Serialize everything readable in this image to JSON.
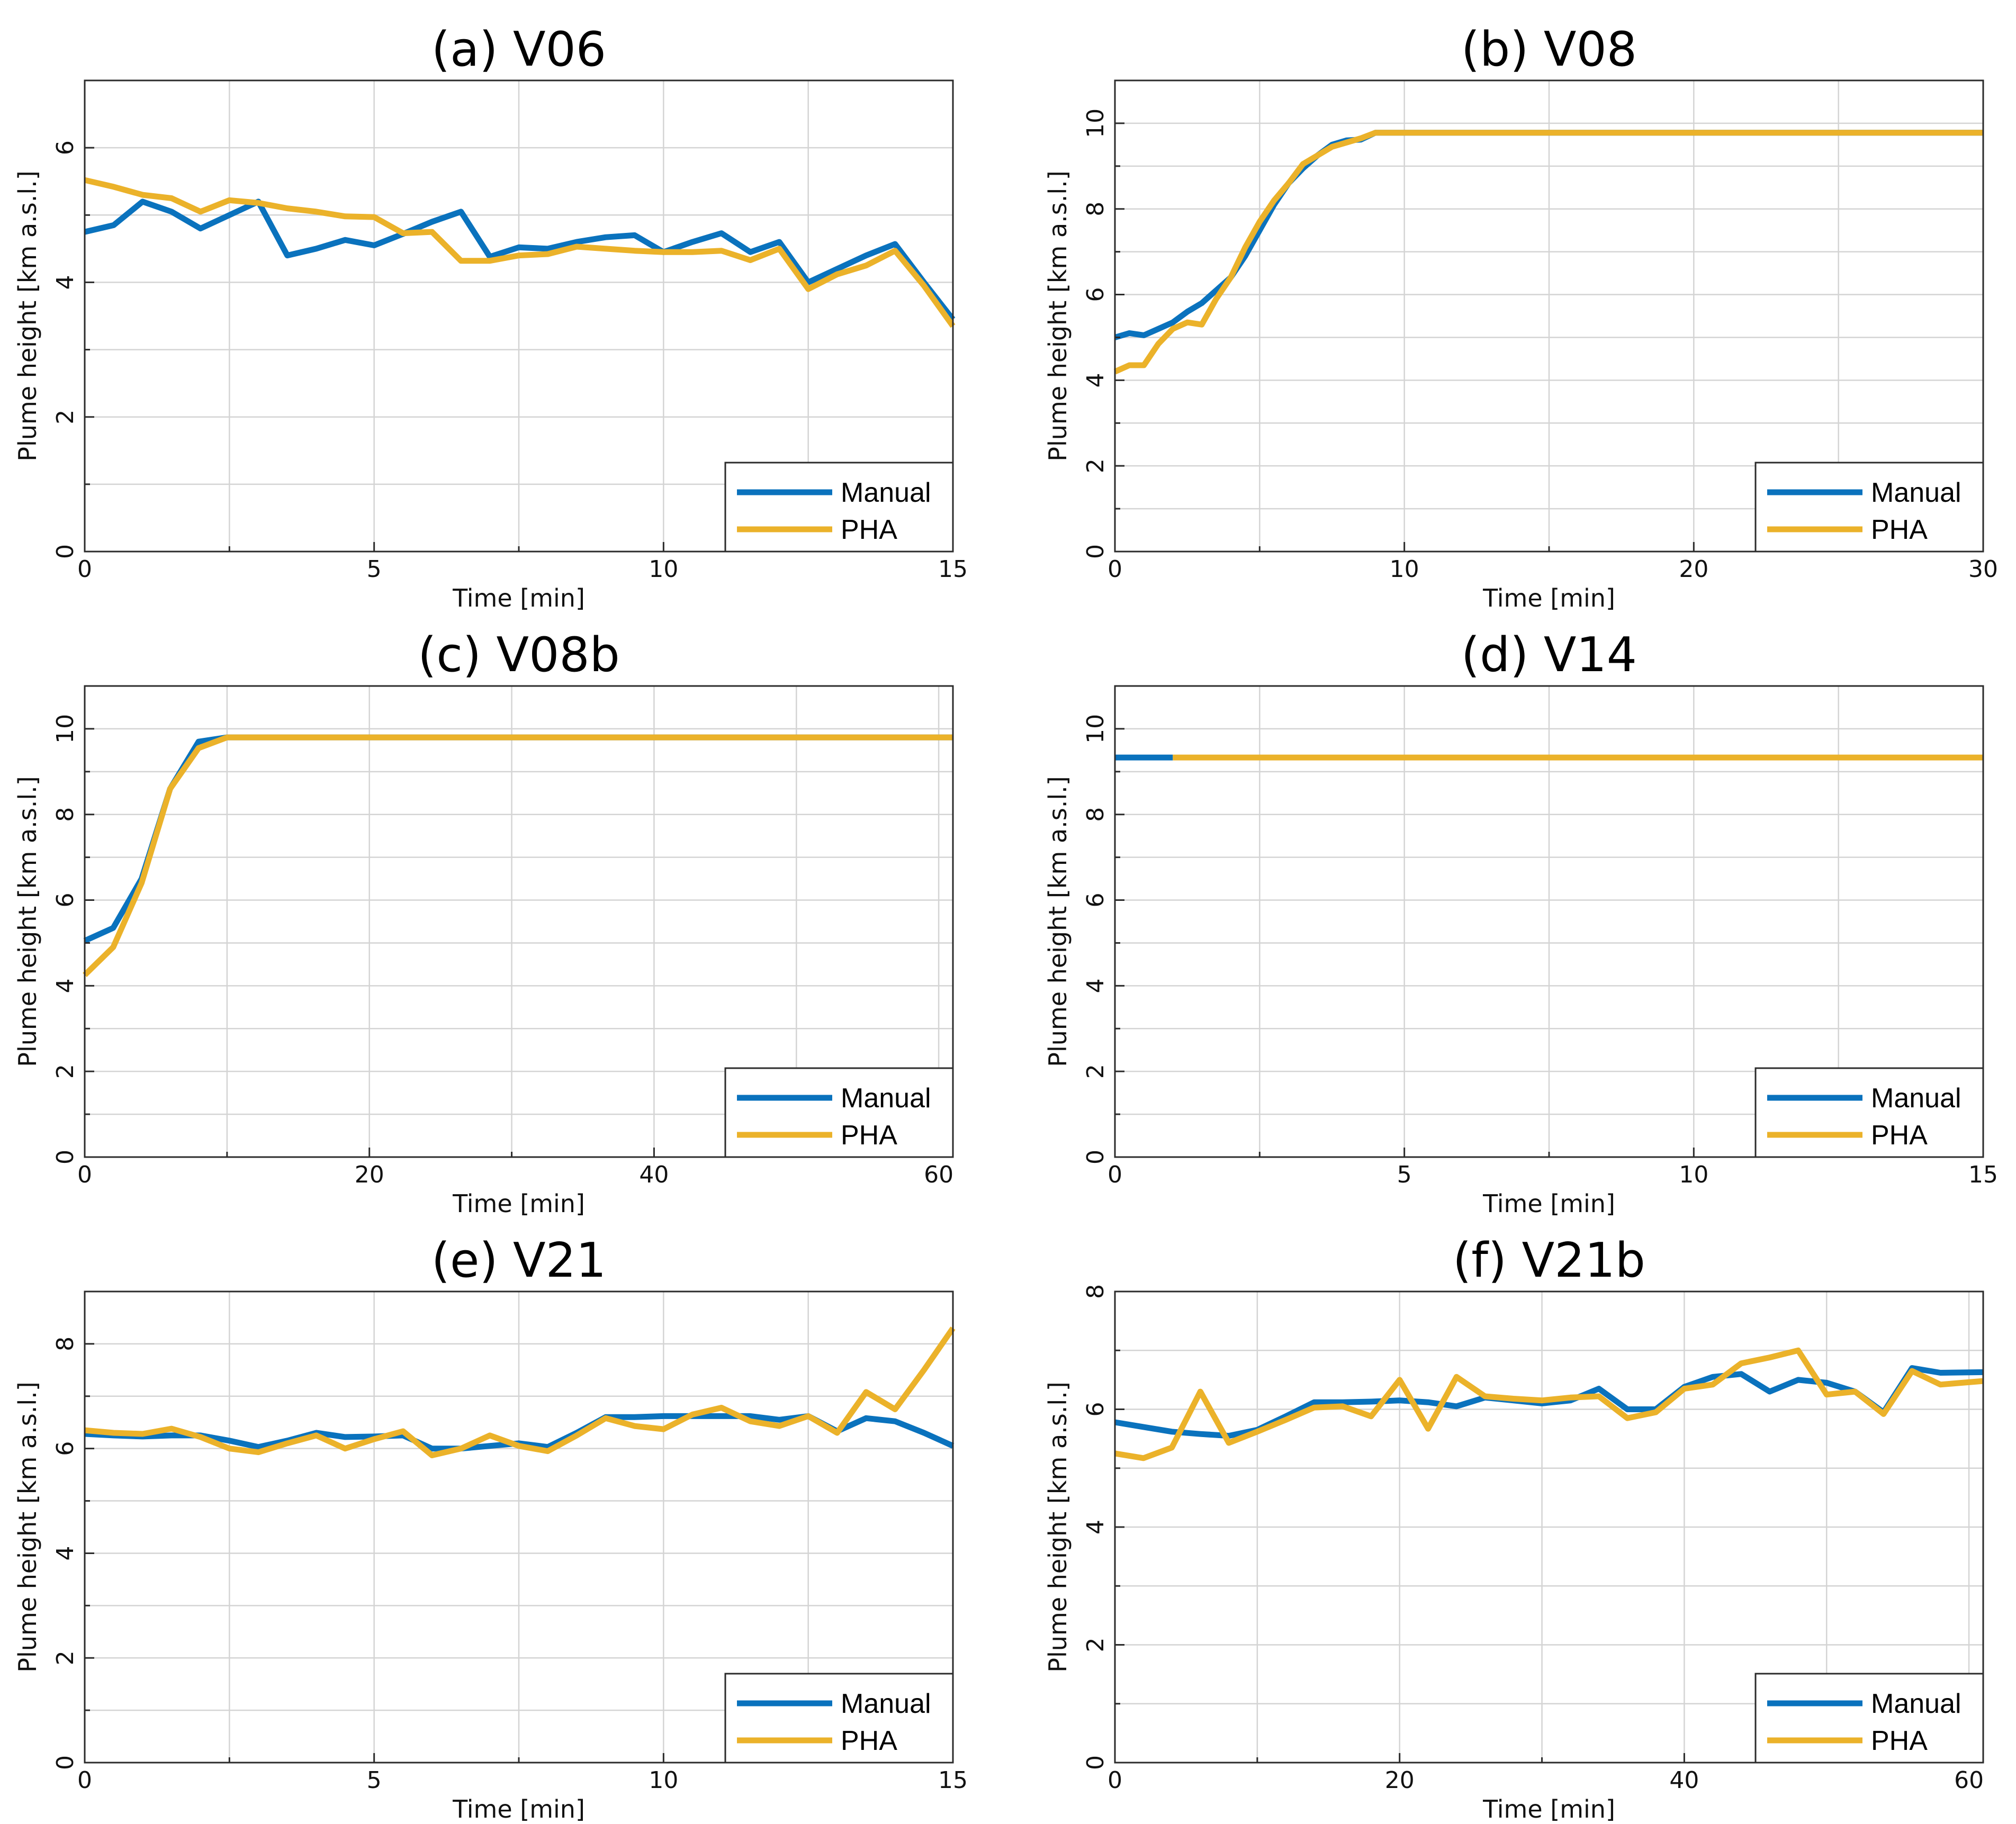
{
  "colors": {
    "manual": "#0a72bd",
    "pha": "#ebb22a"
  },
  "chart_data": [
    {
      "type": "line",
      "title": "(a) V06",
      "xlabel": "Time [min]",
      "ylabel": "Plume height [km a.s.l.]",
      "xlim": [
        0,
        15
      ],
      "ylim": [
        0,
        7
      ],
      "xticks": [
        0,
        5,
        10,
        15
      ],
      "yticks": [
        0,
        2,
        4,
        6
      ],
      "xminor": [
        2.5,
        7.5,
        12.5
      ],
      "yminor": [
        1,
        3,
        5,
        7
      ],
      "legend": {
        "position": "bottom-right",
        "entries": [
          "Manual",
          "PHA"
        ]
      },
      "series": [
        {
          "name": "Manual",
          "x": [
            0,
            0.5,
            1,
            1.5,
            2,
            2.5,
            3,
            3.5,
            4,
            4.5,
            5,
            5.5,
            6,
            6.5,
            7,
            7.5,
            8,
            8.5,
            9,
            9.5,
            10,
            10.5,
            11,
            11.5,
            12,
            12.5,
            13,
            13.5,
            14,
            14.5,
            15
          ],
          "y": [
            4.75,
            4.85,
            5.2,
            5.05,
            4.8,
            5.0,
            5.2,
            4.4,
            4.5,
            4.63,
            4.55,
            4.72,
            4.9,
            5.05,
            4.38,
            4.52,
            4.5,
            4.6,
            4.67,
            4.7,
            4.45,
            4.6,
            4.73,
            4.45,
            4.6,
            4.0,
            4.2,
            4.4,
            4.57,
            4.0,
            3.45
          ]
        },
        {
          "name": "PHA",
          "x": [
            0,
            0.5,
            1,
            1.5,
            2,
            2.5,
            3,
            3.5,
            4,
            4.5,
            5,
            5.5,
            6,
            6.5,
            7,
            7.5,
            8,
            8.5,
            9,
            9.5,
            10,
            10.5,
            11,
            11.5,
            12,
            12.5,
            13,
            13.5,
            14,
            14.5,
            15
          ],
          "y": [
            5.52,
            5.42,
            5.3,
            5.25,
            5.05,
            5.22,
            5.18,
            5.1,
            5.05,
            4.98,
            4.97,
            4.73,
            4.75,
            4.32,
            4.32,
            4.4,
            4.42,
            4.53,
            4.5,
            4.47,
            4.45,
            4.45,
            4.47,
            4.33,
            4.5,
            3.9,
            4.12,
            4.25,
            4.47,
            3.95,
            3.35
          ]
        }
      ]
    },
    {
      "type": "line",
      "title": "(b) V08",
      "xlabel": "Time [min]",
      "ylabel": "Plume height [km a.s.l.]",
      "xlim": [
        0,
        30
      ],
      "ylim": [
        0,
        11
      ],
      "xticks": [
        0,
        10,
        20,
        30
      ],
      "yticks": [
        0,
        2,
        4,
        6,
        8,
        10
      ],
      "xminor": [
        5,
        15,
        25
      ],
      "yminor": [
        1,
        3,
        5,
        7,
        9,
        11
      ],
      "legend": {
        "position": "bottom-right",
        "entries": [
          "Manual",
          "PHA"
        ]
      },
      "series": [
        {
          "name": "Manual",
          "x": [
            0,
            0.5,
            1,
            1.5,
            2,
            2.5,
            3,
            3.5,
            4,
            4.5,
            5,
            5.5,
            6,
            6.5,
            7,
            7.5,
            8,
            8.5,
            9,
            10,
            15,
            20,
            25,
            30
          ],
          "y": [
            5.0,
            5.1,
            5.05,
            5.2,
            5.35,
            5.6,
            5.8,
            6.1,
            6.4,
            6.9,
            7.5,
            8.1,
            8.6,
            8.95,
            9.25,
            9.5,
            9.6,
            9.62,
            9.78,
            9.78,
            9.78,
            9.78,
            9.78,
            9.78
          ]
        },
        {
          "name": "PHA",
          "x": [
            0,
            0.5,
            1,
            1.5,
            2,
            2.5,
            3,
            3.5,
            4,
            4.5,
            5,
            5.5,
            6,
            6.5,
            7,
            7.5,
            8,
            8.5,
            9,
            10,
            15,
            20,
            25,
            30
          ],
          "y": [
            4.2,
            4.35,
            4.35,
            4.85,
            5.2,
            5.35,
            5.3,
            5.9,
            6.4,
            7.1,
            7.7,
            8.2,
            8.6,
            9.05,
            9.25,
            9.45,
            9.55,
            9.65,
            9.78,
            9.78,
            9.78,
            9.78,
            9.78,
            9.78
          ]
        }
      ]
    },
    {
      "type": "line",
      "title": "(c) V08b",
      "xlabel": "Time [min]",
      "ylabel": "Plume height [km a.s.l.]",
      "xlim": [
        0,
        61
      ],
      "ylim": [
        0,
        11
      ],
      "xticks": [
        0,
        20,
        40,
        60
      ],
      "yticks": [
        0,
        2,
        4,
        6,
        8,
        10
      ],
      "xminor": [
        10,
        30,
        50
      ],
      "yminor": [
        1,
        3,
        5,
        7,
        9,
        11
      ],
      "legend": {
        "position": "bottom-right",
        "entries": [
          "Manual",
          "PHA"
        ]
      },
      "series": [
        {
          "name": "Manual",
          "x": [
            0,
            2,
            4,
            6,
            8,
            10,
            20,
            30,
            40,
            50,
            61
          ],
          "y": [
            5.05,
            5.35,
            6.5,
            8.6,
            9.7,
            9.8,
            9.8,
            9.8,
            9.8,
            9.8,
            9.8
          ]
        },
        {
          "name": "PHA",
          "x": [
            0,
            2,
            4,
            6,
            8,
            10,
            20,
            30,
            40,
            50,
            61
          ],
          "y": [
            4.25,
            4.9,
            6.4,
            8.6,
            9.55,
            9.8,
            9.8,
            9.8,
            9.8,
            9.8,
            9.8
          ]
        }
      ]
    },
    {
      "type": "line",
      "title": "(d) V14",
      "xlabel": "Time [min]",
      "ylabel": "Plume height [km a.s.l.]",
      "xlim": [
        0,
        15
      ],
      "ylim": [
        0,
        11
      ],
      "xticks": [
        0,
        5,
        10,
        15
      ],
      "yticks": [
        0,
        2,
        4,
        6,
        8,
        10
      ],
      "xminor": [
        2.5,
        7.5,
        12.5
      ],
      "yminor": [
        1,
        3,
        5,
        7,
        9,
        11
      ],
      "legend": {
        "position": "bottom-right",
        "entries": [
          "Manual",
          "PHA"
        ]
      },
      "series": [
        {
          "name": "Manual",
          "x": [
            0,
            1.0
          ],
          "y": [
            9.33,
            9.33
          ]
        },
        {
          "name": "PHA",
          "x": [
            1.0,
            15
          ],
          "y": [
            9.33,
            9.33
          ]
        }
      ]
    },
    {
      "type": "line",
      "title": "(e) V21",
      "xlabel": "Time [min]",
      "ylabel": "Plume height [km a.s.l.]",
      "xlim": [
        0,
        15
      ],
      "ylim": [
        0,
        9
      ],
      "xticks": [
        0,
        5,
        10,
        15
      ],
      "yticks": [
        0,
        2,
        4,
        6,
        8
      ],
      "xminor": [
        2.5,
        7.5,
        12.5
      ],
      "yminor": [
        1,
        3,
        5,
        7,
        9
      ],
      "legend": {
        "position": "bottom-right",
        "entries": [
          "Manual",
          "PHA"
        ]
      },
      "series": [
        {
          "name": "Manual",
          "x": [
            0,
            0.5,
            1,
            1.5,
            2,
            2.5,
            3,
            3.5,
            4,
            4.5,
            5,
            5.5,
            6,
            6.5,
            7,
            7.5,
            8,
            8.5,
            9,
            9.5,
            10,
            10.5,
            11,
            11.5,
            12,
            12.5,
            13,
            13.5,
            14,
            14.5,
            15
          ],
          "y": [
            6.28,
            6.25,
            6.23,
            6.25,
            6.25,
            6.15,
            6.03,
            6.15,
            6.3,
            6.22,
            6.23,
            6.25,
            6.0,
            6.0,
            6.05,
            6.1,
            6.03,
            6.3,
            6.6,
            6.6,
            6.62,
            6.62,
            6.62,
            6.62,
            6.55,
            6.62,
            6.33,
            6.58,
            6.52,
            6.3,
            6.05
          ]
        },
        {
          "name": "PHA",
          "x": [
            0,
            0.5,
            1,
            1.5,
            2,
            2.5,
            3,
            3.5,
            4,
            4.5,
            5,
            5.5,
            6,
            6.5,
            7,
            7.5,
            8,
            8.5,
            9,
            9.5,
            10,
            10.5,
            11,
            11.5,
            12,
            12.5,
            13,
            13.5,
            14,
            14.5,
            15
          ],
          "y": [
            6.35,
            6.3,
            6.28,
            6.38,
            6.22,
            6.0,
            5.93,
            6.1,
            6.25,
            6.0,
            6.18,
            6.33,
            5.87,
            6.0,
            6.25,
            6.05,
            5.95,
            6.25,
            6.58,
            6.43,
            6.37,
            6.65,
            6.78,
            6.52,
            6.43,
            6.62,
            6.3,
            7.08,
            6.75,
            7.5,
            8.3
          ]
        }
      ]
    },
    {
      "type": "line",
      "title": "(f) V21b",
      "xlabel": "Time [min]",
      "ylabel": "Plume height [km a.s.l.]",
      "xlim": [
        0,
        61
      ],
      "ylim": [
        0,
        8
      ],
      "xticks": [
        0,
        20,
        40,
        60
      ],
      "yticks": [
        0,
        2,
        4,
        6,
        8
      ],
      "xminor": [
        10,
        30,
        50
      ],
      "yminor": [
        1,
        3,
        5,
        7
      ],
      "legend": {
        "position": "bottom-right",
        "entries": [
          "Manual",
          "PHA"
        ]
      },
      "series": [
        {
          "name": "Manual",
          "x": [
            0,
            2,
            4,
            6,
            8,
            10,
            12,
            14,
            16,
            18,
            20,
            22,
            24,
            26,
            28,
            30,
            32,
            34,
            36,
            38,
            40,
            42,
            44,
            46,
            48,
            50,
            52,
            54,
            56,
            58,
            61
          ],
          "y": [
            5.78,
            5.7,
            5.62,
            5.58,
            5.55,
            5.65,
            5.88,
            6.12,
            6.12,
            6.13,
            6.15,
            6.12,
            6.05,
            6.2,
            6.15,
            6.1,
            6.15,
            6.35,
            6.0,
            6.0,
            6.38,
            6.55,
            6.6,
            6.3,
            6.5,
            6.45,
            6.3,
            5.95,
            6.7,
            6.62,
            6.63
          ]
        },
        {
          "name": "PHA",
          "x": [
            0,
            2,
            4,
            6,
            8,
            10,
            12,
            14,
            16,
            18,
            20,
            22,
            24,
            26,
            28,
            30,
            32,
            34,
            36,
            38,
            40,
            42,
            44,
            46,
            48,
            50,
            52,
            54,
            56,
            58,
            61
          ],
          "y": [
            5.25,
            5.17,
            5.35,
            6.3,
            5.43,
            5.62,
            5.82,
            6.03,
            6.05,
            5.88,
            6.5,
            5.67,
            6.55,
            6.22,
            6.18,
            6.15,
            6.2,
            6.22,
            5.85,
            5.95,
            6.35,
            6.42,
            6.78,
            6.88,
            7.0,
            6.25,
            6.3,
            5.92,
            6.65,
            6.42,
            6.48
          ]
        }
      ]
    }
  ]
}
